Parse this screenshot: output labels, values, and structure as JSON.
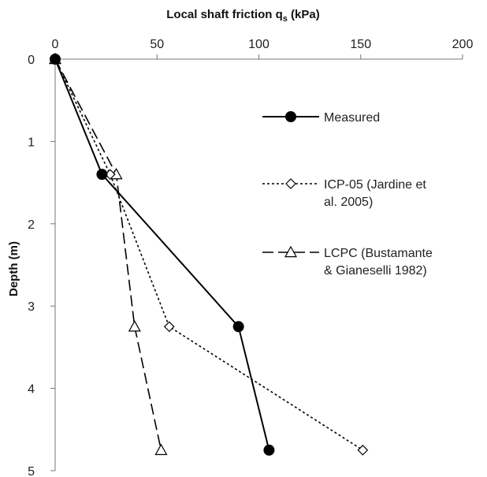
{
  "chart_data": {
    "type": "line",
    "xlabel": "Local shaft friction q",
    "xlabel_sub": "s",
    "xlabel_unit": " (kPa)",
    "ylabel": "Depth (m)",
    "xlim": [
      0,
      200
    ],
    "ylim": [
      0,
      5
    ],
    "y_inverted": true,
    "x_axis_position": "top",
    "x_ticks": [
      0,
      50,
      100,
      150,
      200
    ],
    "y_ticks": [
      0,
      1,
      2,
      3,
      4,
      5
    ],
    "grid": false,
    "legend_position": "right",
    "series": [
      {
        "name": "Measured",
        "line_style": "solid",
        "marker": "filled-circle",
        "color": "#000000",
        "points": [
          {
            "x": 0,
            "y": 0
          },
          {
            "x": 23,
            "y": 1.4
          },
          {
            "x": 90,
            "y": 3.25
          },
          {
            "x": 105,
            "y": 4.75
          }
        ]
      },
      {
        "name": "ICP-05 (Jardine et al. 2005)",
        "line_style": "dotted",
        "marker": "open-diamond",
        "color": "#000000",
        "points": [
          {
            "x": 0,
            "y": 0
          },
          {
            "x": 27,
            "y": 1.4
          },
          {
            "x": 56,
            "y": 3.25
          },
          {
            "x": 151,
            "y": 4.75
          }
        ]
      },
      {
        "name": "LCPC (Bustamante & Gianeselli 1982)",
        "line_style": "dashed",
        "marker": "open-triangle",
        "color": "#000000",
        "points": [
          {
            "x": 0,
            "y": 0
          },
          {
            "x": 30,
            "y": 1.4
          },
          {
            "x": 39,
            "y": 3.25
          },
          {
            "x": 52,
            "y": 4.75
          }
        ]
      }
    ],
    "legend": [
      {
        "lines": [
          "Measured"
        ]
      },
      {
        "lines": [
          "ICP-05 (Jardine et",
          "al. 2005)"
        ]
      },
      {
        "lines": [
          "LCPC (Bustamante",
          "& Gianeselli 1982)"
        ]
      }
    ]
  }
}
